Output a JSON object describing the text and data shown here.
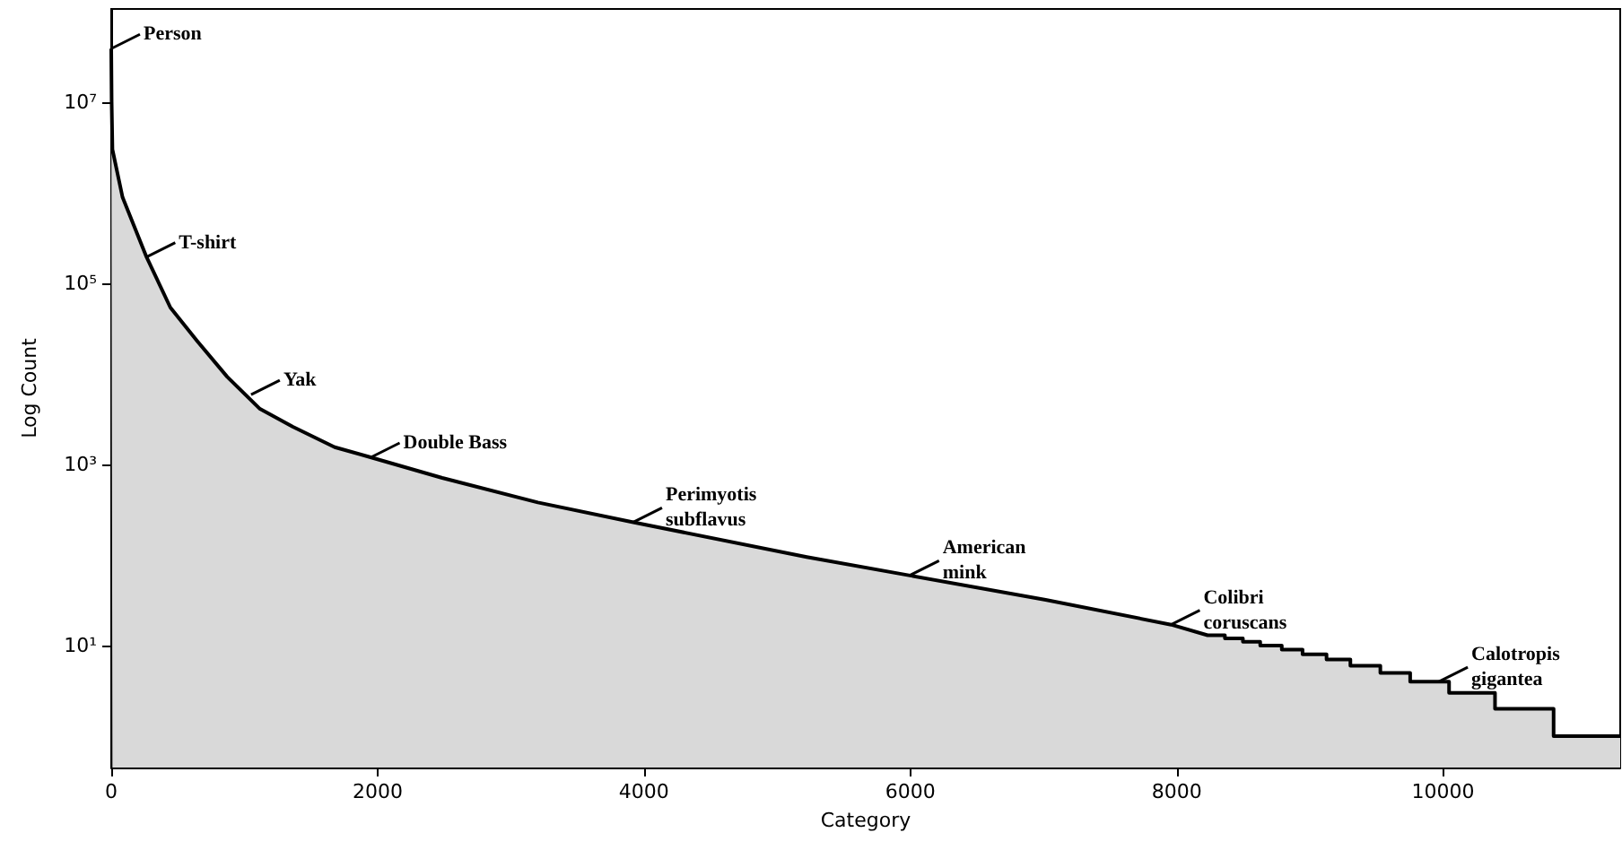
{
  "chart_data": {
    "type": "area",
    "xlabel": "Category",
    "ylabel": "Log Count",
    "log": "y",
    "xlim": [
      0,
      11330
    ],
    "xticks": [
      0,
      2000,
      4000,
      6000,
      8000,
      10000
    ],
    "ylim": [
      0.45,
      107000000
    ],
    "yticks": [
      {
        "value": 10,
        "label": "10¹"
      },
      {
        "value": 1000,
        "label": "10³"
      },
      {
        "value": 100000,
        "label": "10⁵"
      },
      {
        "value": 10000000,
        "label": "10⁷"
      }
    ],
    "grid": false,
    "series": [
      {
        "color": "#000000",
        "x": [
          0,
          3,
          3,
          9,
          85,
          265,
          444,
          646,
          870,
          1117,
          1364,
          1678,
          1947,
          2485,
          3203,
          3920,
          5222,
          6007,
          7016,
          7958,
          8232,
          8362,
          8362,
          8497,
          8497,
          8627,
          8627,
          8789,
          8789,
          8945,
          8945,
          9125,
          9125,
          9304,
          9304,
          9529,
          9529,
          9753,
          9753,
          10045,
          10045,
          10390,
          10390,
          10830,
          10830,
          11330
        ],
        "values": [
          39000000,
          39000000,
          10000000,
          3000000,
          890000,
          195000,
          54000,
          23000,
          9300,
          4100,
          2600,
          1550,
          1200,
          710,
          380,
          230,
          95,
          59,
          32,
          17,
          13,
          13,
          12,
          12,
          11,
          11,
          10,
          10,
          9,
          9,
          8,
          8,
          7,
          7,
          6,
          6,
          5,
          5,
          4,
          4,
          3,
          3,
          2,
          2,
          1,
          1
        ]
      }
    ],
    "annotations": [
      {
        "text": "Person",
        "x": 0,
        "y": 39000000
      },
      {
        "text": "T-shirt",
        "x": 265,
        "y": 195000
      },
      {
        "text": "Yak",
        "x": 1050,
        "y": 5900
      },
      {
        "text": "Double Bass",
        "x": 1950,
        "y": 1200
      },
      {
        "text": "Perimyotis\nsubflavus",
        "x": 3920,
        "y": 230
      },
      {
        "text": "American\nmink",
        "x": 6000,
        "y": 60
      },
      {
        "text": "Colibri\ncoruscans",
        "x": 7958,
        "y": 17
      },
      {
        "text": "Calotropis\ngigantea",
        "x": 9970,
        "y": 4
      }
    ]
  }
}
